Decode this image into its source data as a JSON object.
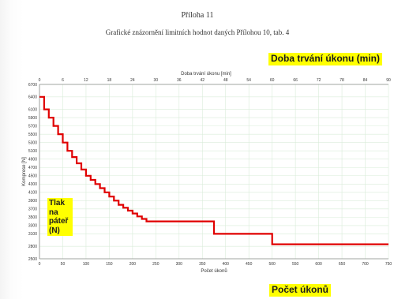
{
  "document": {
    "heading": "Příloha 11",
    "subtitle": "Grafické znázornění limitních hodnot daných Přílohou 10, tab. 4"
  },
  "labels": {
    "top_axis_highlight": "Doba trvání úkonu (min)",
    "bottom_axis_highlight": "Počet úkonů",
    "y_highlight": "Tlak na páteř (N)"
  },
  "colors": {
    "line": "#e00000",
    "highlight": "#ffff00",
    "grid": "#d9ecd9"
  },
  "chart_data": {
    "type": "line",
    "xlabel": "Počet úkonů",
    "ylabel": "Komprese [N]",
    "x2label": "Doba trvání úkonu [min]",
    "xlim": [
      0,
      750
    ],
    "ylim": [
      2500,
      6700
    ],
    "x2lim": [
      0,
      90
    ],
    "x_ticks": [
      0,
      50,
      100,
      150,
      200,
      250,
      300,
      350,
      400,
      450,
      500,
      550,
      600,
      650,
      700,
      750
    ],
    "y_ticks": [
      2500,
      2800,
      3100,
      3400,
      3700,
      4000,
      4300,
      4600,
      4900,
      5200,
      5500,
      5800,
      6100,
      6400,
      6700
    ],
    "y_tick_labels": [
      "2500",
      "2800",
      "3100",
      "3400",
      "3700",
      "4000",
      "4300",
      "4600",
      "4900",
      "5200",
      "5500",
      "5800",
      "6100",
      "6400",
      "6700"
    ],
    "y_labels_shown": [
      2500,
      2800,
      3100,
      3300,
      3500,
      3700,
      3900,
      4100,
      4300,
      4500,
      4700,
      4900,
      5100,
      5300,
      5500,
      5700,
      5900,
      6100,
      6400,
      6700
    ],
    "x2_ticks": [
      0,
      6,
      12,
      18,
      24,
      30,
      36,
      42,
      48,
      54,
      60,
      66,
      72,
      78,
      84,
      90
    ],
    "grid": true,
    "series": [
      {
        "points": [
          [
            0,
            6400
          ],
          [
            10,
            6400
          ],
          [
            10,
            6100
          ],
          [
            20,
            6100
          ],
          [
            20,
            5900
          ],
          [
            30,
            5900
          ],
          [
            30,
            5700
          ],
          [
            40,
            5700
          ],
          [
            40,
            5500
          ],
          [
            50,
            5500
          ],
          [
            50,
            5300
          ],
          [
            60,
            5300
          ],
          [
            60,
            5100
          ],
          [
            70,
            5100
          ],
          [
            70,
            4950
          ],
          [
            80,
            4950
          ],
          [
            80,
            4800
          ],
          [
            90,
            4800
          ],
          [
            90,
            4650
          ],
          [
            100,
            4650
          ],
          [
            100,
            4500
          ],
          [
            110,
            4500
          ],
          [
            110,
            4400
          ],
          [
            120,
            4400
          ],
          [
            120,
            4300
          ],
          [
            130,
            4300
          ],
          [
            130,
            4200
          ],
          [
            140,
            4200
          ],
          [
            140,
            4100
          ],
          [
            150,
            4100
          ],
          [
            150,
            4000
          ],
          [
            160,
            4000
          ],
          [
            160,
            3900
          ],
          [
            170,
            3900
          ],
          [
            170,
            3800
          ],
          [
            180,
            3800
          ],
          [
            180,
            3730
          ],
          [
            190,
            3730
          ],
          [
            190,
            3660
          ],
          [
            200,
            3660
          ],
          [
            200,
            3590
          ],
          [
            210,
            3590
          ],
          [
            210,
            3520
          ],
          [
            220,
            3520
          ],
          [
            220,
            3460
          ],
          [
            230,
            3460
          ],
          [
            230,
            3400
          ],
          [
            375,
            3400
          ],
          [
            375,
            3100
          ],
          [
            500,
            3100
          ],
          [
            500,
            2850
          ],
          [
            750,
            2850
          ]
        ]
      }
    ]
  }
}
